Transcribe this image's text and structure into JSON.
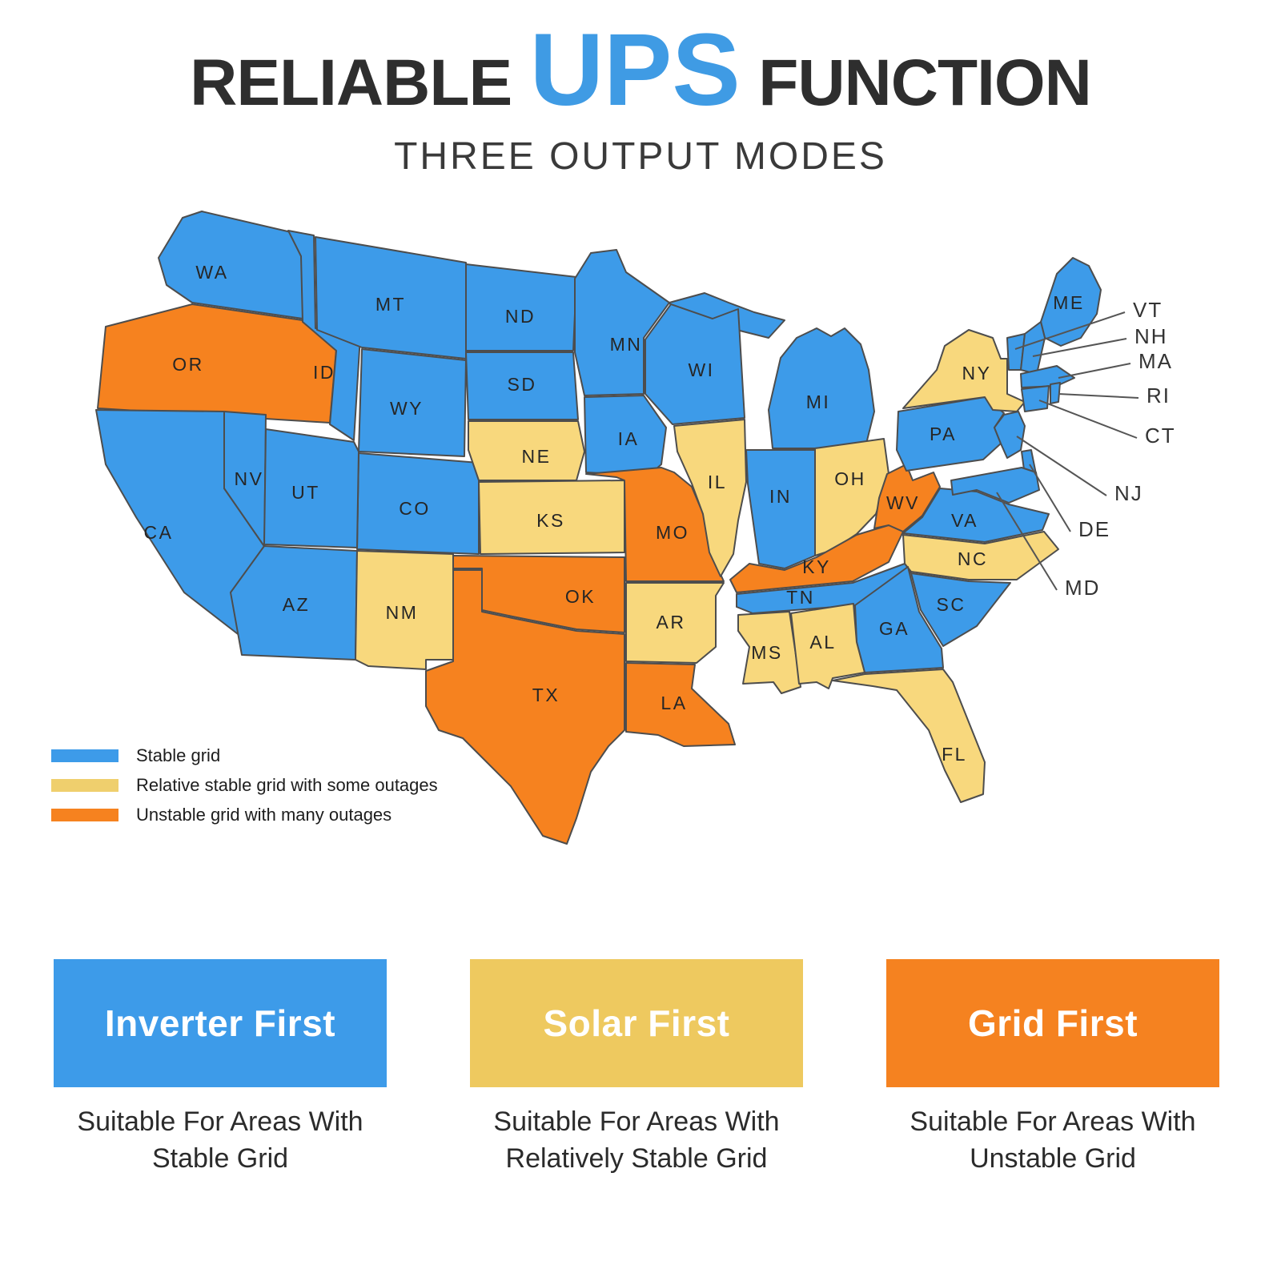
{
  "title": {
    "leading": "RELIABLE",
    "highlight": "UPS",
    "trailing": "FUNCTION"
  },
  "subtitle": "THREE OUTPUT MODES",
  "palette": {
    "stable": "#3D9BE9",
    "relative_stable": "#F8D87D",
    "unstable": "#F6821F",
    "title_highlight": "#3F9BE4",
    "outline": "#4D4D4D"
  },
  "legend": {
    "items": [
      {
        "category": "stable",
        "swatch_color": "#3D9BE9",
        "label": "Stable grid"
      },
      {
        "category": "relative_stable",
        "swatch_color": "#EFCF6D",
        "label": "Relative stable grid with some outages"
      },
      {
        "category": "unstable",
        "swatch_color": "#F6821F",
        "label": "Unstable grid with many outages"
      }
    ]
  },
  "map": {
    "labeled_states": [
      {
        "abbr": "WA",
        "category": "stable"
      },
      {
        "abbr": "OR",
        "category": "unstable"
      },
      {
        "abbr": "CA",
        "category": "stable"
      },
      {
        "abbr": "NV",
        "category": "stable"
      },
      {
        "abbr": "ID",
        "category": "stable"
      },
      {
        "abbr": "MT",
        "category": "stable"
      },
      {
        "abbr": "WY",
        "category": "stable"
      },
      {
        "abbr": "CO",
        "category": "stable"
      },
      {
        "abbr": "UT",
        "category": "stable"
      },
      {
        "abbr": "AZ",
        "category": "stable"
      },
      {
        "abbr": "NM",
        "category": "relative_stable"
      },
      {
        "abbr": "ND",
        "category": "stable"
      },
      {
        "abbr": "SD",
        "category": "stable"
      },
      {
        "abbr": "NE",
        "category": "relative_stable"
      },
      {
        "abbr": "KS",
        "category": "relative_stable"
      },
      {
        "abbr": "OK",
        "category": "unstable"
      },
      {
        "abbr": "TX",
        "category": "unstable"
      },
      {
        "abbr": "MN",
        "category": "stable"
      },
      {
        "abbr": "IA",
        "category": "stable"
      },
      {
        "abbr": "MO",
        "category": "unstable"
      },
      {
        "abbr": "AR",
        "category": "relative_stable"
      },
      {
        "abbr": "LA",
        "category": "unstable"
      },
      {
        "abbr": "WI",
        "category": "stable"
      },
      {
        "abbr": "IL",
        "category": "relative_stable"
      },
      {
        "abbr": "MS",
        "category": "relative_stable"
      },
      {
        "abbr": "MI",
        "category": "stable"
      },
      {
        "abbr": "IN",
        "category": "stable"
      },
      {
        "abbr": "OH",
        "category": "relative_stable"
      },
      {
        "abbr": "KY",
        "category": "unstable"
      },
      {
        "abbr": "TN",
        "category": "stable"
      },
      {
        "abbr": "WV",
        "category": "unstable"
      },
      {
        "abbr": "VA",
        "category": "stable"
      },
      {
        "abbr": "NC",
        "category": "relative_stable"
      },
      {
        "abbr": "SC",
        "category": "stable"
      },
      {
        "abbr": "GA",
        "category": "stable"
      },
      {
        "abbr": "AL",
        "category": "relative_stable"
      },
      {
        "abbr": "FL",
        "category": "relative_stable"
      },
      {
        "abbr": "PA",
        "category": "stable"
      },
      {
        "abbr": "NY",
        "category": "relative_stable"
      },
      {
        "abbr": "ME",
        "category": "stable"
      }
    ],
    "callout_states": [
      {
        "abbr": "VT",
        "category": "stable"
      },
      {
        "abbr": "NH",
        "category": "stable"
      },
      {
        "abbr": "MA",
        "category": "stable"
      },
      {
        "abbr": "RI",
        "category": "stable"
      },
      {
        "abbr": "CT",
        "category": "stable"
      },
      {
        "abbr": "NJ",
        "category": "stable"
      },
      {
        "abbr": "DE",
        "category": "stable"
      },
      {
        "abbr": "MD",
        "category": "stable"
      }
    ]
  },
  "modes": [
    {
      "name": "Inverter First",
      "color": "#3D9BE9",
      "description": "Suitable For Areas With Stable Grid"
    },
    {
      "name": "Solar First",
      "color": "#EEC95F",
      "description": "Suitable For Areas With Relatively Stable Grid"
    },
    {
      "name": "Grid First",
      "color": "#F58220",
      "description": "Suitable For Areas With Unstable Grid"
    }
  ]
}
